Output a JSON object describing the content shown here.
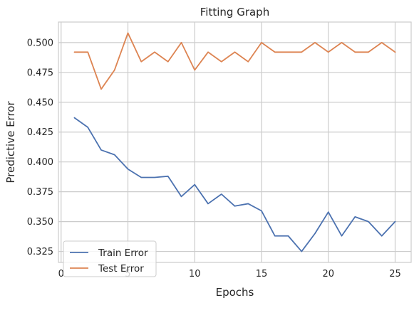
{
  "chart_data": {
    "type": "line",
    "title": "Fitting Graph",
    "xlabel": "Epochs",
    "ylabel": "Predictive Error",
    "xlim": [
      -0.2,
      26.2
    ],
    "ylim": [
      0.3158,
      0.5172
    ],
    "xticks": [
      0,
      5,
      10,
      15,
      20,
      25
    ],
    "yticks": [
      0.325,
      0.35,
      0.375,
      0.4,
      0.425,
      0.45,
      0.475,
      0.5
    ],
    "grid": true,
    "legend": "lower-left",
    "x": [
      1,
      2,
      3,
      4,
      5,
      6,
      7,
      8,
      9,
      10,
      11,
      12,
      13,
      14,
      15,
      16,
      17,
      18,
      19,
      20,
      21,
      22,
      23,
      24,
      25
    ],
    "series": [
      {
        "name": "Train Error",
        "color": "#4c72b0",
        "values": [
          0.437,
          0.429,
          0.41,
          0.406,
          0.394,
          0.387,
          0.387,
          0.388,
          0.371,
          0.381,
          0.365,
          0.373,
          0.363,
          0.365,
          0.359,
          0.338,
          0.338,
          0.325,
          0.34,
          0.358,
          0.338,
          0.354,
          0.35,
          0.338,
          0.35
        ]
      },
      {
        "name": "Test Error",
        "color": "#dd8452",
        "values": [
          0.492,
          0.492,
          0.461,
          0.477,
          0.508,
          0.484,
          0.492,
          0.484,
          0.5,
          0.477,
          0.492,
          0.484,
          0.492,
          0.484,
          0.5,
          0.492,
          0.492,
          0.492,
          0.5,
          0.492,
          0.5,
          0.492,
          0.492,
          0.5,
          0.492
        ]
      }
    ]
  }
}
